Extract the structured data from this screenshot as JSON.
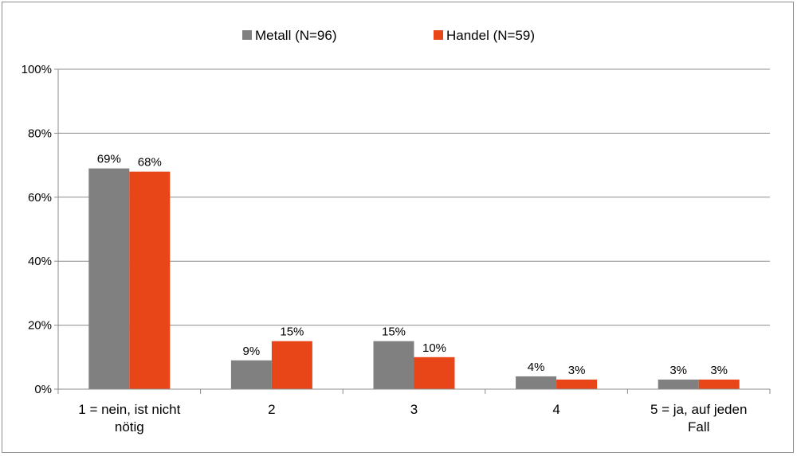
{
  "chart_data": {
    "type": "bar",
    "categories": [
      [
        "1 = nein, ist nicht",
        "nötig"
      ],
      [
        "2"
      ],
      [
        "3"
      ],
      [
        "4"
      ],
      [
        "5 = ja, auf jeden",
        "Fall"
      ]
    ],
    "series": [
      {
        "name": "Metall (N=96)",
        "color": "#808080",
        "values": [
          69,
          9,
          15,
          4,
          3
        ],
        "labels": [
          "69%",
          "9%",
          "15%",
          "4%",
          "3%"
        ]
      },
      {
        "name": "Handel (N=59)",
        "color": "#e84619",
        "values": [
          68,
          15,
          10,
          3,
          3
        ],
        "labels": [
          "68%",
          "15%",
          "10%",
          "3%",
          "3%"
        ]
      }
    ],
    "yticks": [
      "0%",
      "20%",
      "40%",
      "60%",
      "80%",
      "100%"
    ],
    "ylim": [
      0,
      100
    ],
    "grid": true,
    "legend": "top-center"
  }
}
